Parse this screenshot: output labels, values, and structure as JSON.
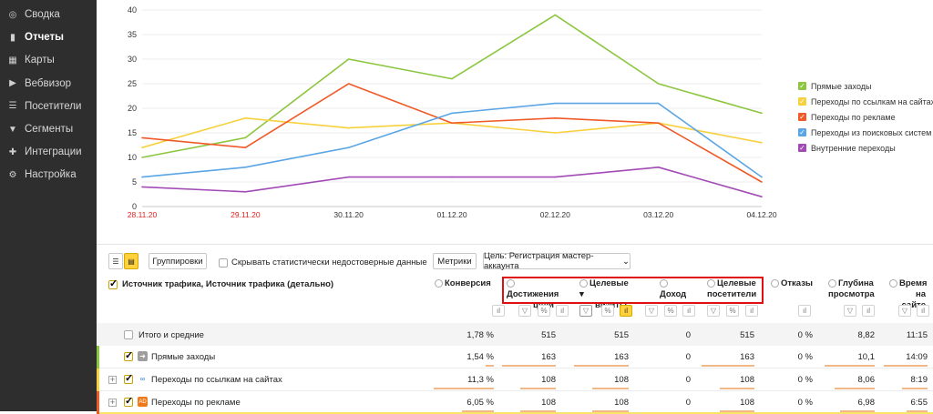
{
  "sidebar": {
    "items": [
      {
        "label": "Сводка",
        "icon": "dashboard-icon",
        "glyph": "◎"
      },
      {
        "label": "Отчеты",
        "icon": "bar-chart-icon",
        "glyph": "▮"
      },
      {
        "label": "Карты",
        "icon": "map-icon",
        "glyph": "▦"
      },
      {
        "label": "Вебвизор",
        "icon": "play-icon",
        "glyph": "▶"
      },
      {
        "label": "Посетители",
        "icon": "users-icon",
        "glyph": "☰"
      },
      {
        "label": "Сегменты",
        "icon": "filter-icon",
        "glyph": "▼"
      },
      {
        "label": "Интеграции",
        "icon": "puzzle-icon",
        "glyph": "✚"
      },
      {
        "label": "Настройка",
        "icon": "gear-icon",
        "glyph": "⚙"
      }
    ],
    "active_index": 1
  },
  "chart_data": {
    "type": "line",
    "x": [
      "28.11.20",
      "29.11.20",
      "30.11.20",
      "01.12.20",
      "02.12.20",
      "03.12.20",
      "04.12.20"
    ],
    "weekend_color": "#e02020",
    "weekend_ticks": [
      0,
      1
    ],
    "ylim": [
      0,
      40
    ],
    "yticks": [
      0,
      5,
      10,
      15,
      20,
      25,
      30,
      35,
      40
    ],
    "grid": true,
    "legend_position": "right",
    "series": [
      {
        "name": "Прямые заходы",
        "color": "#8cc63f",
        "values": [
          10,
          14,
          30,
          26,
          39,
          25,
          19
        ]
      },
      {
        "name": "Переходы по ссылкам на сайтах",
        "color": "#f7d13d",
        "values": [
          12,
          18,
          16,
          17,
          15,
          17,
          13
        ]
      },
      {
        "name": "Переходы по рекламе",
        "color": "#f05a28",
        "values": [
          14,
          12,
          25,
          17,
          18,
          17,
          5
        ]
      },
      {
        "name": "Переходы из поисковых систем",
        "color": "#5aa5e6",
        "values": [
          6,
          8,
          12,
          19,
          21,
          21,
          6
        ]
      },
      {
        "name": "Внутренние переходы",
        "color": "#a24ab5",
        "values": [
          4,
          3,
          6,
          6,
          6,
          8,
          2
        ]
      }
    ]
  },
  "toolbar": {
    "list_icon": "list-view-icon",
    "chart_icon": "chart-view-icon",
    "groupings": "Группировки",
    "hide_unreliable": "Скрывать статистически недостоверные данные",
    "metrics": "Метрики",
    "goal": "Цель: Регистрация мастер-аккаунта",
    "goal_caret": "⌄"
  },
  "table": {
    "dimension_header": "Источник трафика, Источник трафика (детально)",
    "columns": [
      {
        "line1": "Конверсия",
        "line2": ""
      },
      {
        "line1": "Достижения",
        "line2": "цели"
      },
      {
        "line1": "Целевые ▾",
        "line2": "визиты"
      },
      {
        "line1": "Доход",
        "line2": ""
      },
      {
        "line1": "Целевые",
        "line2": "посетители"
      },
      {
        "line1": "Отказы",
        "line2": ""
      },
      {
        "line1": "Глубина",
        "line2": "просмотра"
      },
      {
        "line1": "Время",
        "line2": "на сайте"
      }
    ],
    "total": {
      "label": "Итого и средние",
      "values": [
        "1,78 %",
        "515",
        "515",
        "0",
        "515",
        "0 %",
        "8,82",
        "11:15"
      ]
    },
    "rows": [
      {
        "label": "Прямые заходы",
        "color": "#8cc63f",
        "icon": "direct-visit-icon",
        "values": [
          "1,54 %",
          "163",
          "163",
          "0",
          "163",
          "0 %",
          "10,1",
          "14:09"
        ],
        "expandable": false
      },
      {
        "label": "Переходы по ссылкам на сайтах",
        "color": "#f7d13d",
        "icon": "link-icon",
        "values": [
          "11,3 %",
          "108",
          "108",
          "0",
          "108",
          "0 %",
          "8,06",
          "8:19"
        ],
        "expandable": true
      },
      {
        "label": "Переходы по рекламе",
        "color": "#f05a28",
        "icon": "ad-icon",
        "values": [
          "6,05 %",
          "108",
          "108",
          "0",
          "108",
          "0 %",
          "6,98",
          "6:55"
        ],
        "expandable": true
      }
    ]
  }
}
